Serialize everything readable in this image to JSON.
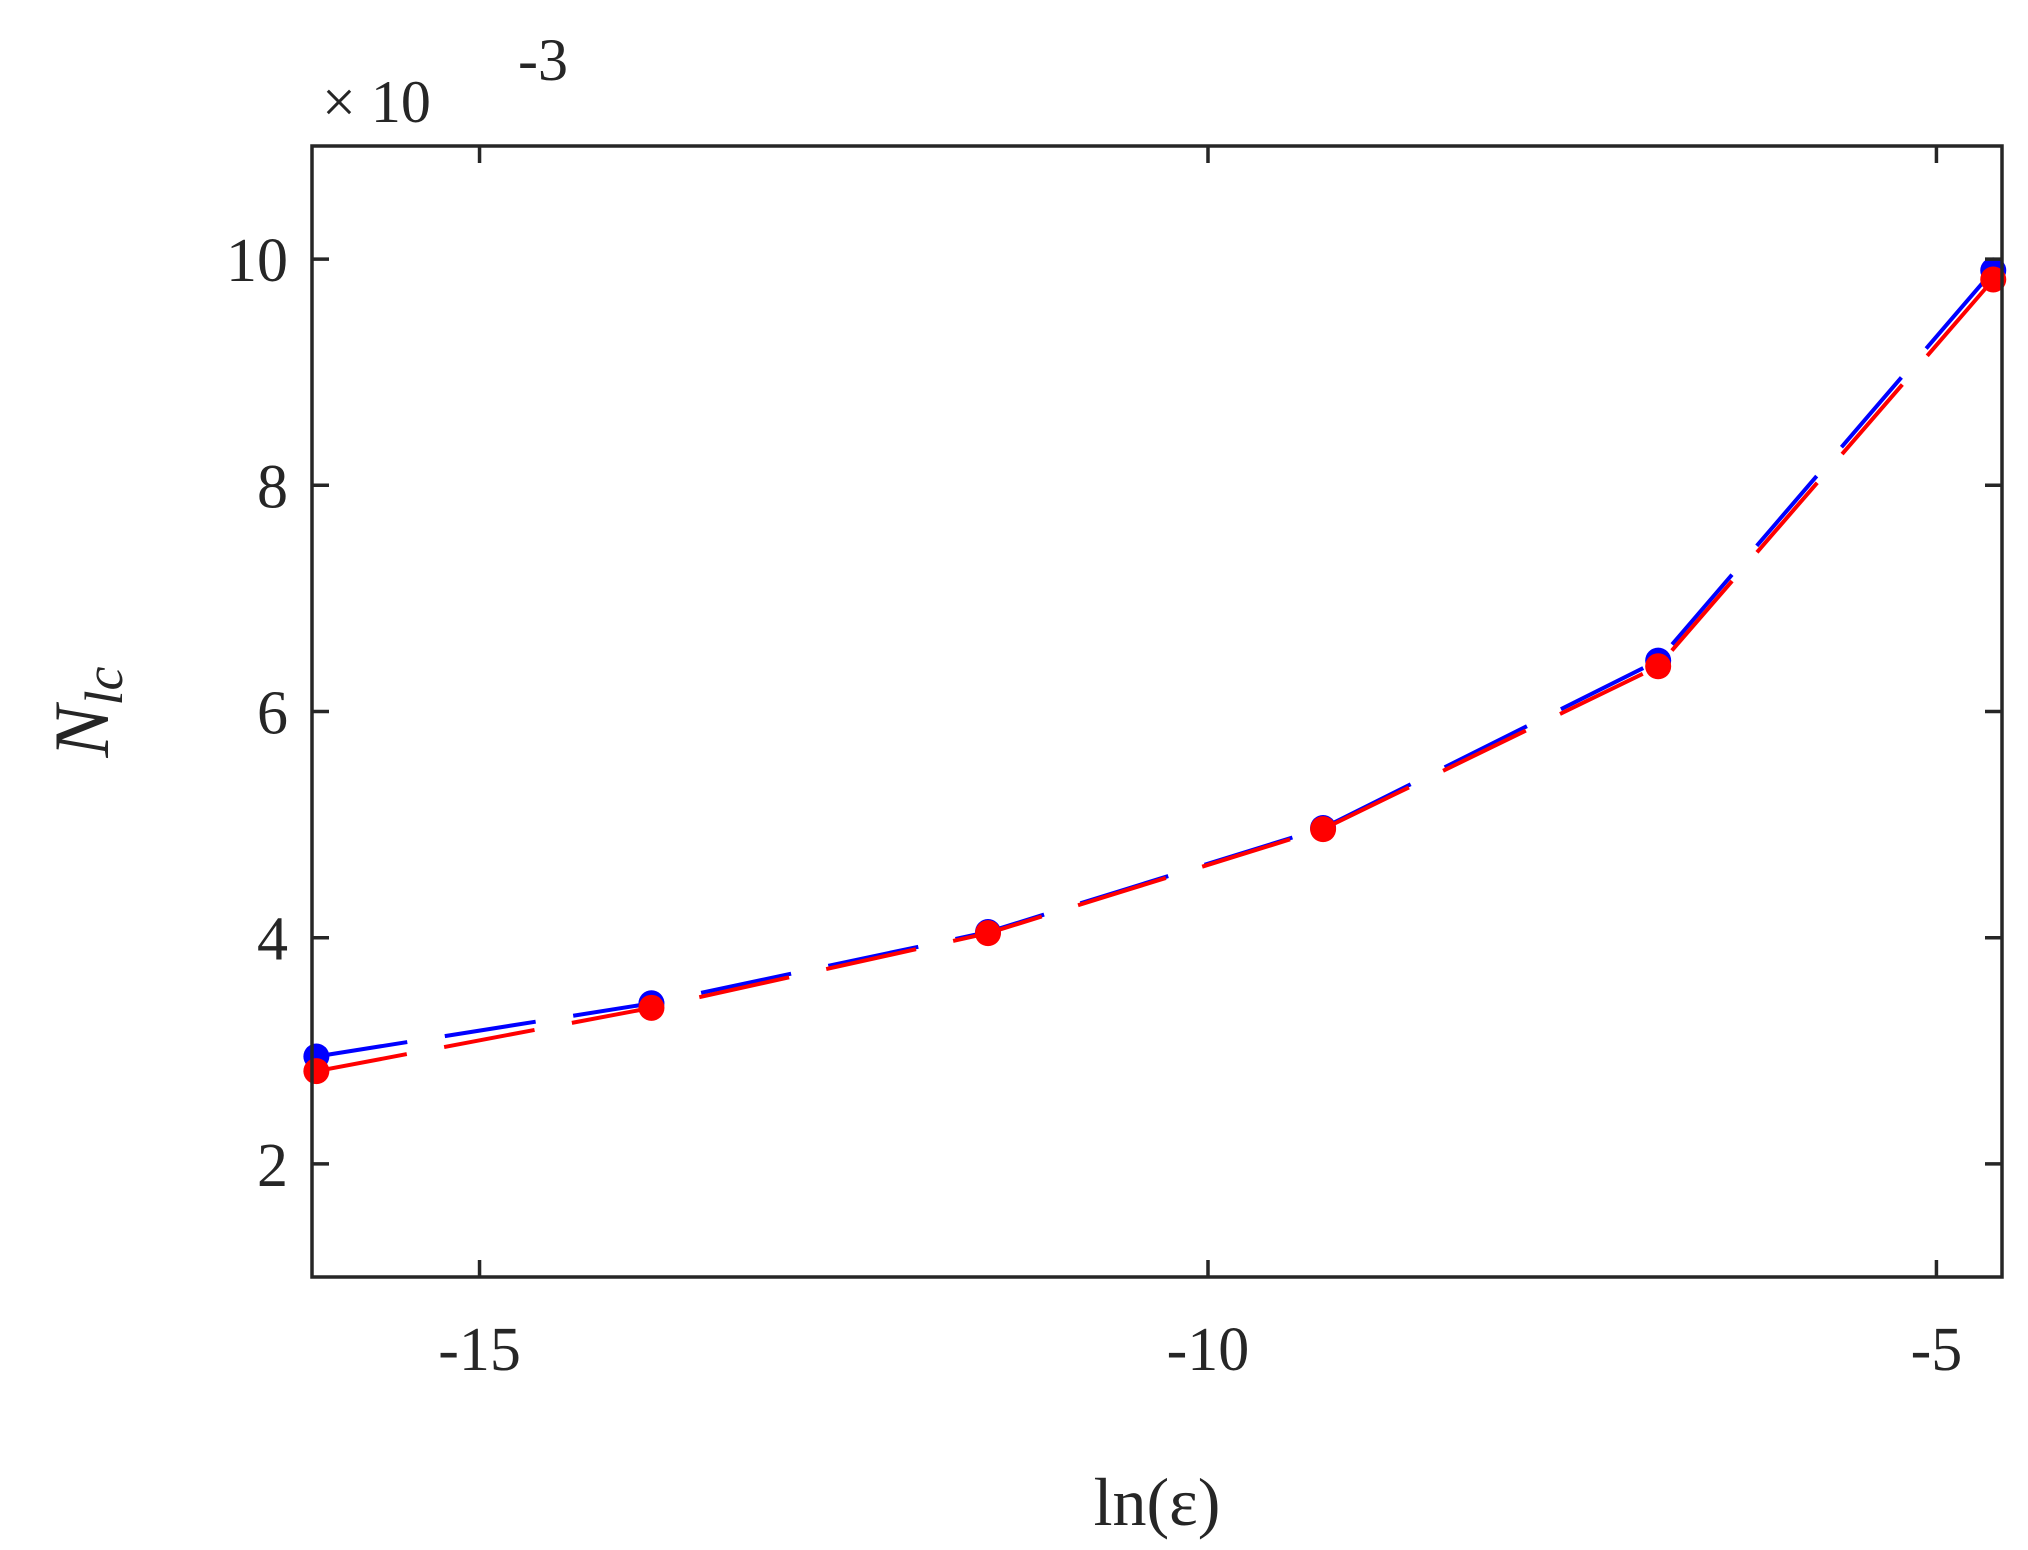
{
  "chart_data": {
    "type": "line",
    "title": "",
    "xlabel": "ln(ε)",
    "ylabel_main": "N",
    "ylabel_sub": "lc",
    "y_exponent_label": "× 10",
    "y_exponent_power": "-3",
    "xlim": [
      -16.15,
      -4.55
    ],
    "ylim": [
      1.0,
      11.0
    ],
    "xticks": [
      -15,
      -10,
      -5
    ],
    "xtick_labels": [
      "-15",
      "-10",
      "-5"
    ],
    "yticks": [
      2,
      4,
      6,
      8,
      10
    ],
    "ytick_labels": [
      "2",
      "4",
      "6",
      "8",
      "10"
    ],
    "grid": false,
    "legend": null,
    "x": [
      -16.12,
      -13.82,
      -11.51,
      -9.21,
      -6.91,
      -4.61
    ],
    "series": [
      {
        "color": "#0000ff",
        "line_style": "dashed",
        "marker": "circle",
        "values": [
          2.95,
          3.42,
          4.05,
          4.97,
          6.45,
          9.9
        ]
      },
      {
        "color": "#ff0000",
        "line_style": "dashed",
        "marker": "circle",
        "values": [
          2.82,
          3.38,
          4.04,
          4.96,
          6.4,
          9.82
        ]
      }
    ]
  }
}
